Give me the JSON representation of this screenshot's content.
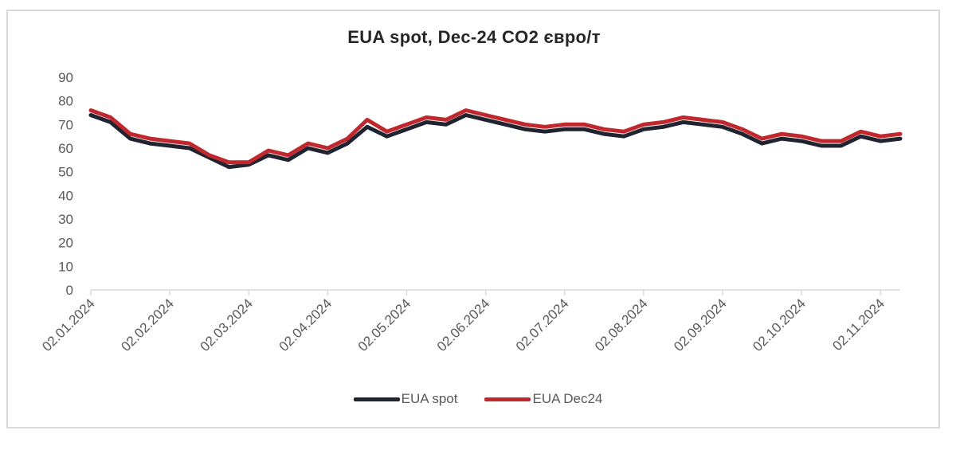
{
  "chart_data": {
    "type": "line",
    "title": "EUA spot, Dec-24 CO2 євро/т",
    "xlabel": "",
    "ylabel": "",
    "ylim": [
      0,
      90
    ],
    "yticks": [
      "0",
      "10",
      "20",
      "30",
      "40",
      "50",
      "60",
      "70",
      "80",
      "90"
    ],
    "x": [
      "02.01.2024",
      "09.01.2024",
      "16.01.2024",
      "23.01.2024",
      "02.02.2024",
      "09.02.2024",
      "16.02.2024",
      "23.02.2024",
      "02.03.2024",
      "09.03.2024",
      "16.03.2024",
      "23.03.2024",
      "02.04.2024",
      "09.04.2024",
      "16.04.2024",
      "23.04.2024",
      "02.05.2024",
      "09.05.2024",
      "16.05.2024",
      "23.05.2024",
      "02.06.2024",
      "09.06.2024",
      "16.06.2024",
      "23.06.2024",
      "02.07.2024",
      "09.07.2024",
      "16.07.2024",
      "23.07.2024",
      "02.08.2024",
      "09.08.2024",
      "16.08.2024",
      "23.08.2024",
      "02.09.2024",
      "09.09.2024",
      "16.09.2024",
      "23.09.2024",
      "02.10.2024",
      "09.10.2024",
      "16.10.2024",
      "23.10.2024",
      "02.11.2024",
      "07.11.2024"
    ],
    "x_tick_labels": [
      "02.01.2024",
      "02.02.2024",
      "02.03.2024",
      "02.04.2024",
      "02.05.2024",
      "02.06.2024",
      "02.07.2024",
      "02.08.2024",
      "02.09.2024",
      "02.10.2024",
      "02.11.2024"
    ],
    "series": [
      {
        "name": "EUA spot",
        "color": "#1f2430",
        "values": [
          74,
          71,
          64,
          62,
          61,
          60,
          56,
          52,
          53,
          57,
          55,
          60,
          58,
          62,
          69,
          65,
          68,
          71,
          70,
          74,
          72,
          70,
          68,
          67,
          68,
          68,
          66,
          65,
          68,
          69,
          71,
          70,
          69,
          66,
          62,
          64,
          63,
          61,
          61,
          65,
          63,
          64
        ]
      },
      {
        "name": "EUA Dec24",
        "color": "#c0282d",
        "values": [
          76,
          73,
          66,
          64,
          63,
          62,
          57,
          54,
          54,
          59,
          57,
          62,
          60,
          64,
          72,
          67,
          70,
          73,
          72,
          76,
          74,
          72,
          70,
          69,
          70,
          70,
          68,
          67,
          70,
          71,
          73,
          72,
          71,
          68,
          64,
          66,
          65,
          63,
          63,
          67,
          65,
          66
        ]
      }
    ],
    "legend_position": "bottom",
    "grid": false
  }
}
